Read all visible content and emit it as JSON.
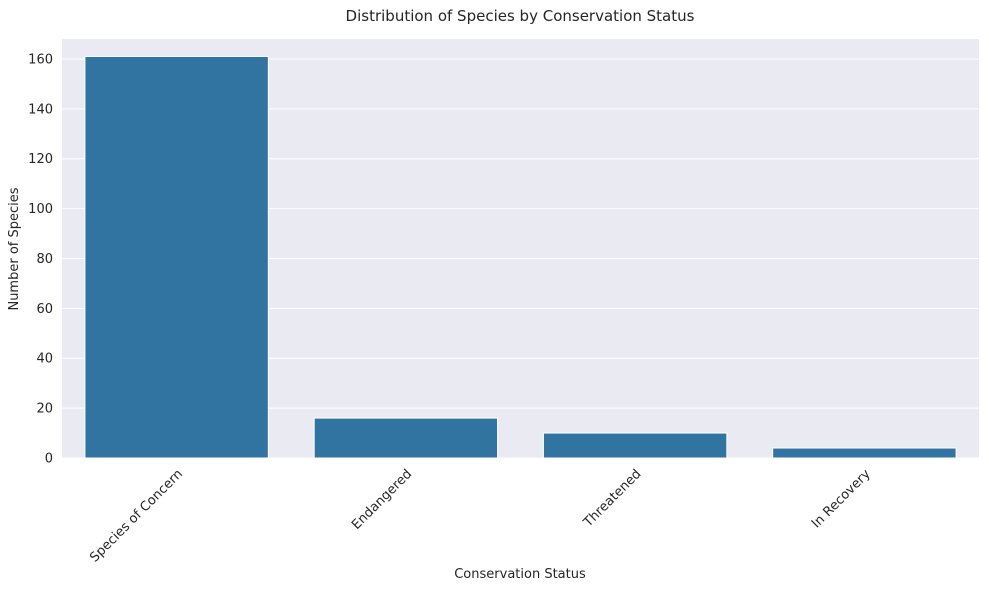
{
  "chart_data": {
    "type": "bar",
    "title": "Distribution of Species by Conservation Status",
    "xlabel": "Conservation Status",
    "ylabel": "Number of Species",
    "categories": [
      "Species of Concern",
      "Endangered",
      "Threatened",
      "In Recovery"
    ],
    "values": [
      161,
      16,
      10,
      4
    ],
    "ylim": [
      0,
      168
    ],
    "yticks": [
      0,
      20,
      40,
      60,
      80,
      100,
      120,
      140,
      160
    ],
    "x_tick_rotation_deg": 45,
    "grid": true,
    "legend": "none",
    "colors": {
      "bar": "#3274A1",
      "plot_background": "#EAEAF2",
      "grid": "#FFFFFF"
    }
  }
}
